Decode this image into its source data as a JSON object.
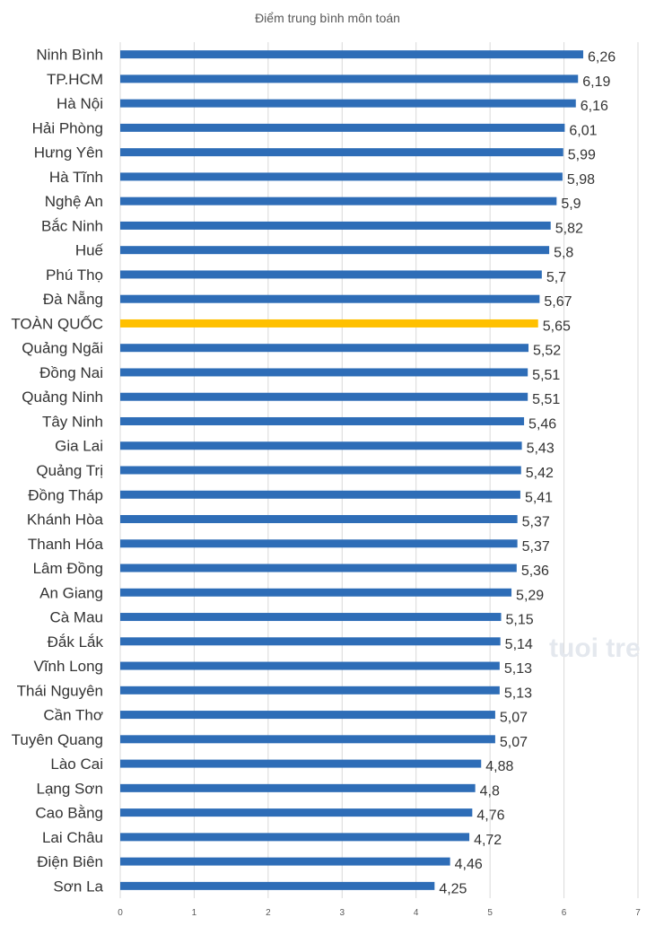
{
  "chart_data": {
    "type": "bar",
    "orientation": "horizontal",
    "title": "Điểm trung bình môn toán",
    "xlim": [
      0,
      7
    ],
    "x_ticks": [
      "0",
      "1",
      "2",
      "3",
      "4",
      "5",
      "6",
      "7"
    ],
    "grid": true,
    "default_color": "#2e6db7",
    "highlight_color": "#ffc000",
    "highlight_category": "TOÀN QUỐC",
    "categories": [
      "Ninh Bình",
      "TP.HCM",
      "Hà Nội",
      "Hải Phòng",
      "Hưng Yên",
      "Hà Tĩnh",
      "Nghệ An",
      "Bắc Ninh",
      "Huế",
      "Phú Thọ",
      "Đà Nẵng",
      "TOÀN QUỐC",
      "Quảng Ngãi",
      "Đồng Nai",
      "Quảng Ninh",
      "Tây Ninh",
      "Gia Lai",
      "Quảng Trị",
      "Đồng Tháp",
      "Khánh Hòa",
      "Thanh Hóa",
      "Lâm Đồng",
      "An Giang",
      "Cà Mau",
      "Đắk Lắk",
      "Vĩnh Long",
      "Thái Nguyên",
      "Cần Thơ",
      "Tuyên Quang",
      "Lào Cai",
      "Lạng Sơn",
      "Cao Bằng",
      "Lai Châu",
      "Điện Biên",
      "Sơn La"
    ],
    "values": [
      6.26,
      6.19,
      6.16,
      6.01,
      5.99,
      5.98,
      5.9,
      5.82,
      5.8,
      5.7,
      5.67,
      5.65,
      5.52,
      5.51,
      5.51,
      5.46,
      5.43,
      5.42,
      5.41,
      5.37,
      5.37,
      5.36,
      5.29,
      5.15,
      5.14,
      5.13,
      5.13,
      5.07,
      5.07,
      4.88,
      4.8,
      4.76,
      4.72,
      4.46,
      4.25
    ],
    "value_labels": [
      "6,26",
      "6,19",
      "6,16",
      "6,01",
      "5,99",
      "5,98",
      "5,9",
      "5,82",
      "5,8",
      "5,7",
      "5,67",
      "5,65",
      "5,52",
      "5,51",
      "5,51",
      "5,46",
      "5,43",
      "5,42",
      "5,41",
      "5,37",
      "5,37",
      "5,36",
      "5,29",
      "5,15",
      "5,14",
      "5,13",
      "5,13",
      "5,07",
      "5,07",
      "4,88",
      "4,8",
      "4,76",
      "4,72",
      "4,46",
      "4,25"
    ]
  },
  "watermark": "tuoi tre"
}
